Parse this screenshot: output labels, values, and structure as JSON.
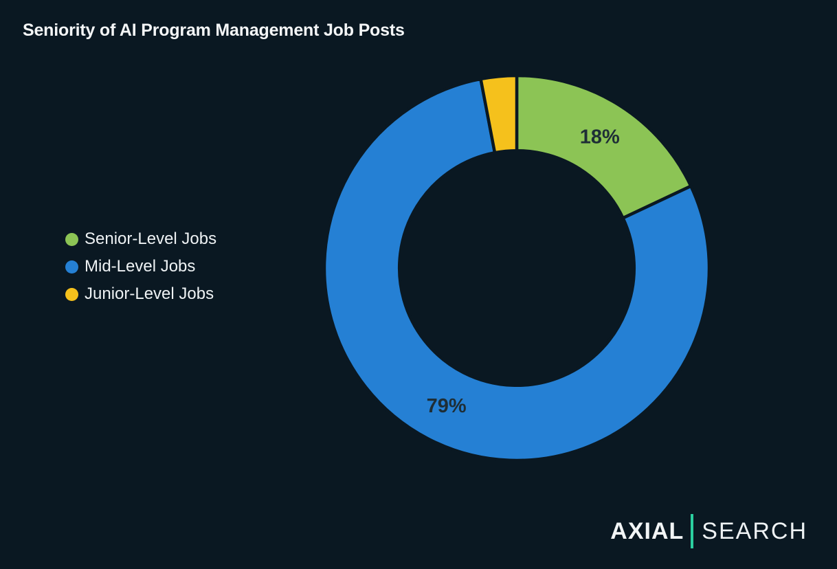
{
  "theme": {
    "background_color": "#0a1822",
    "title_color": "#f4f6f7",
    "legend_text_color": "#eef2f4"
  },
  "header": {
    "title": "Seniority of AI Program Management Job Posts"
  },
  "legend": {
    "items": [
      {
        "label": "Senior-Level Jobs",
        "color": "#8cc455"
      },
      {
        "label": "Mid-Level Jobs",
        "color": "#2580d4"
      },
      {
        "label": "Junior-Level Jobs",
        "color": "#f5c11c"
      }
    ]
  },
  "chart_data": {
    "type": "pie",
    "variant": "donut",
    "title": "Seniority of AI Program Management Job Posts",
    "categories": [
      "Senior-Level Jobs",
      "Mid-Level Jobs",
      "Junior-Level Jobs"
    ],
    "values": [
      18,
      79,
      3
    ],
    "unit": "%",
    "colors": [
      "#8cc455",
      "#2580d4",
      "#f5c11c"
    ],
    "slice_labels": [
      "18%",
      "79%",
      ""
    ],
    "label_color": "#1e2e36",
    "start_angle_deg": 0,
    "direction": "clockwise",
    "donut_hole_ratio": 0.61,
    "separator_width": 4.5,
    "legend_position": "left"
  },
  "logo": {
    "brand": "AXIAL",
    "suffix": "SEARCH",
    "divider_color": "#2bcfa0"
  }
}
